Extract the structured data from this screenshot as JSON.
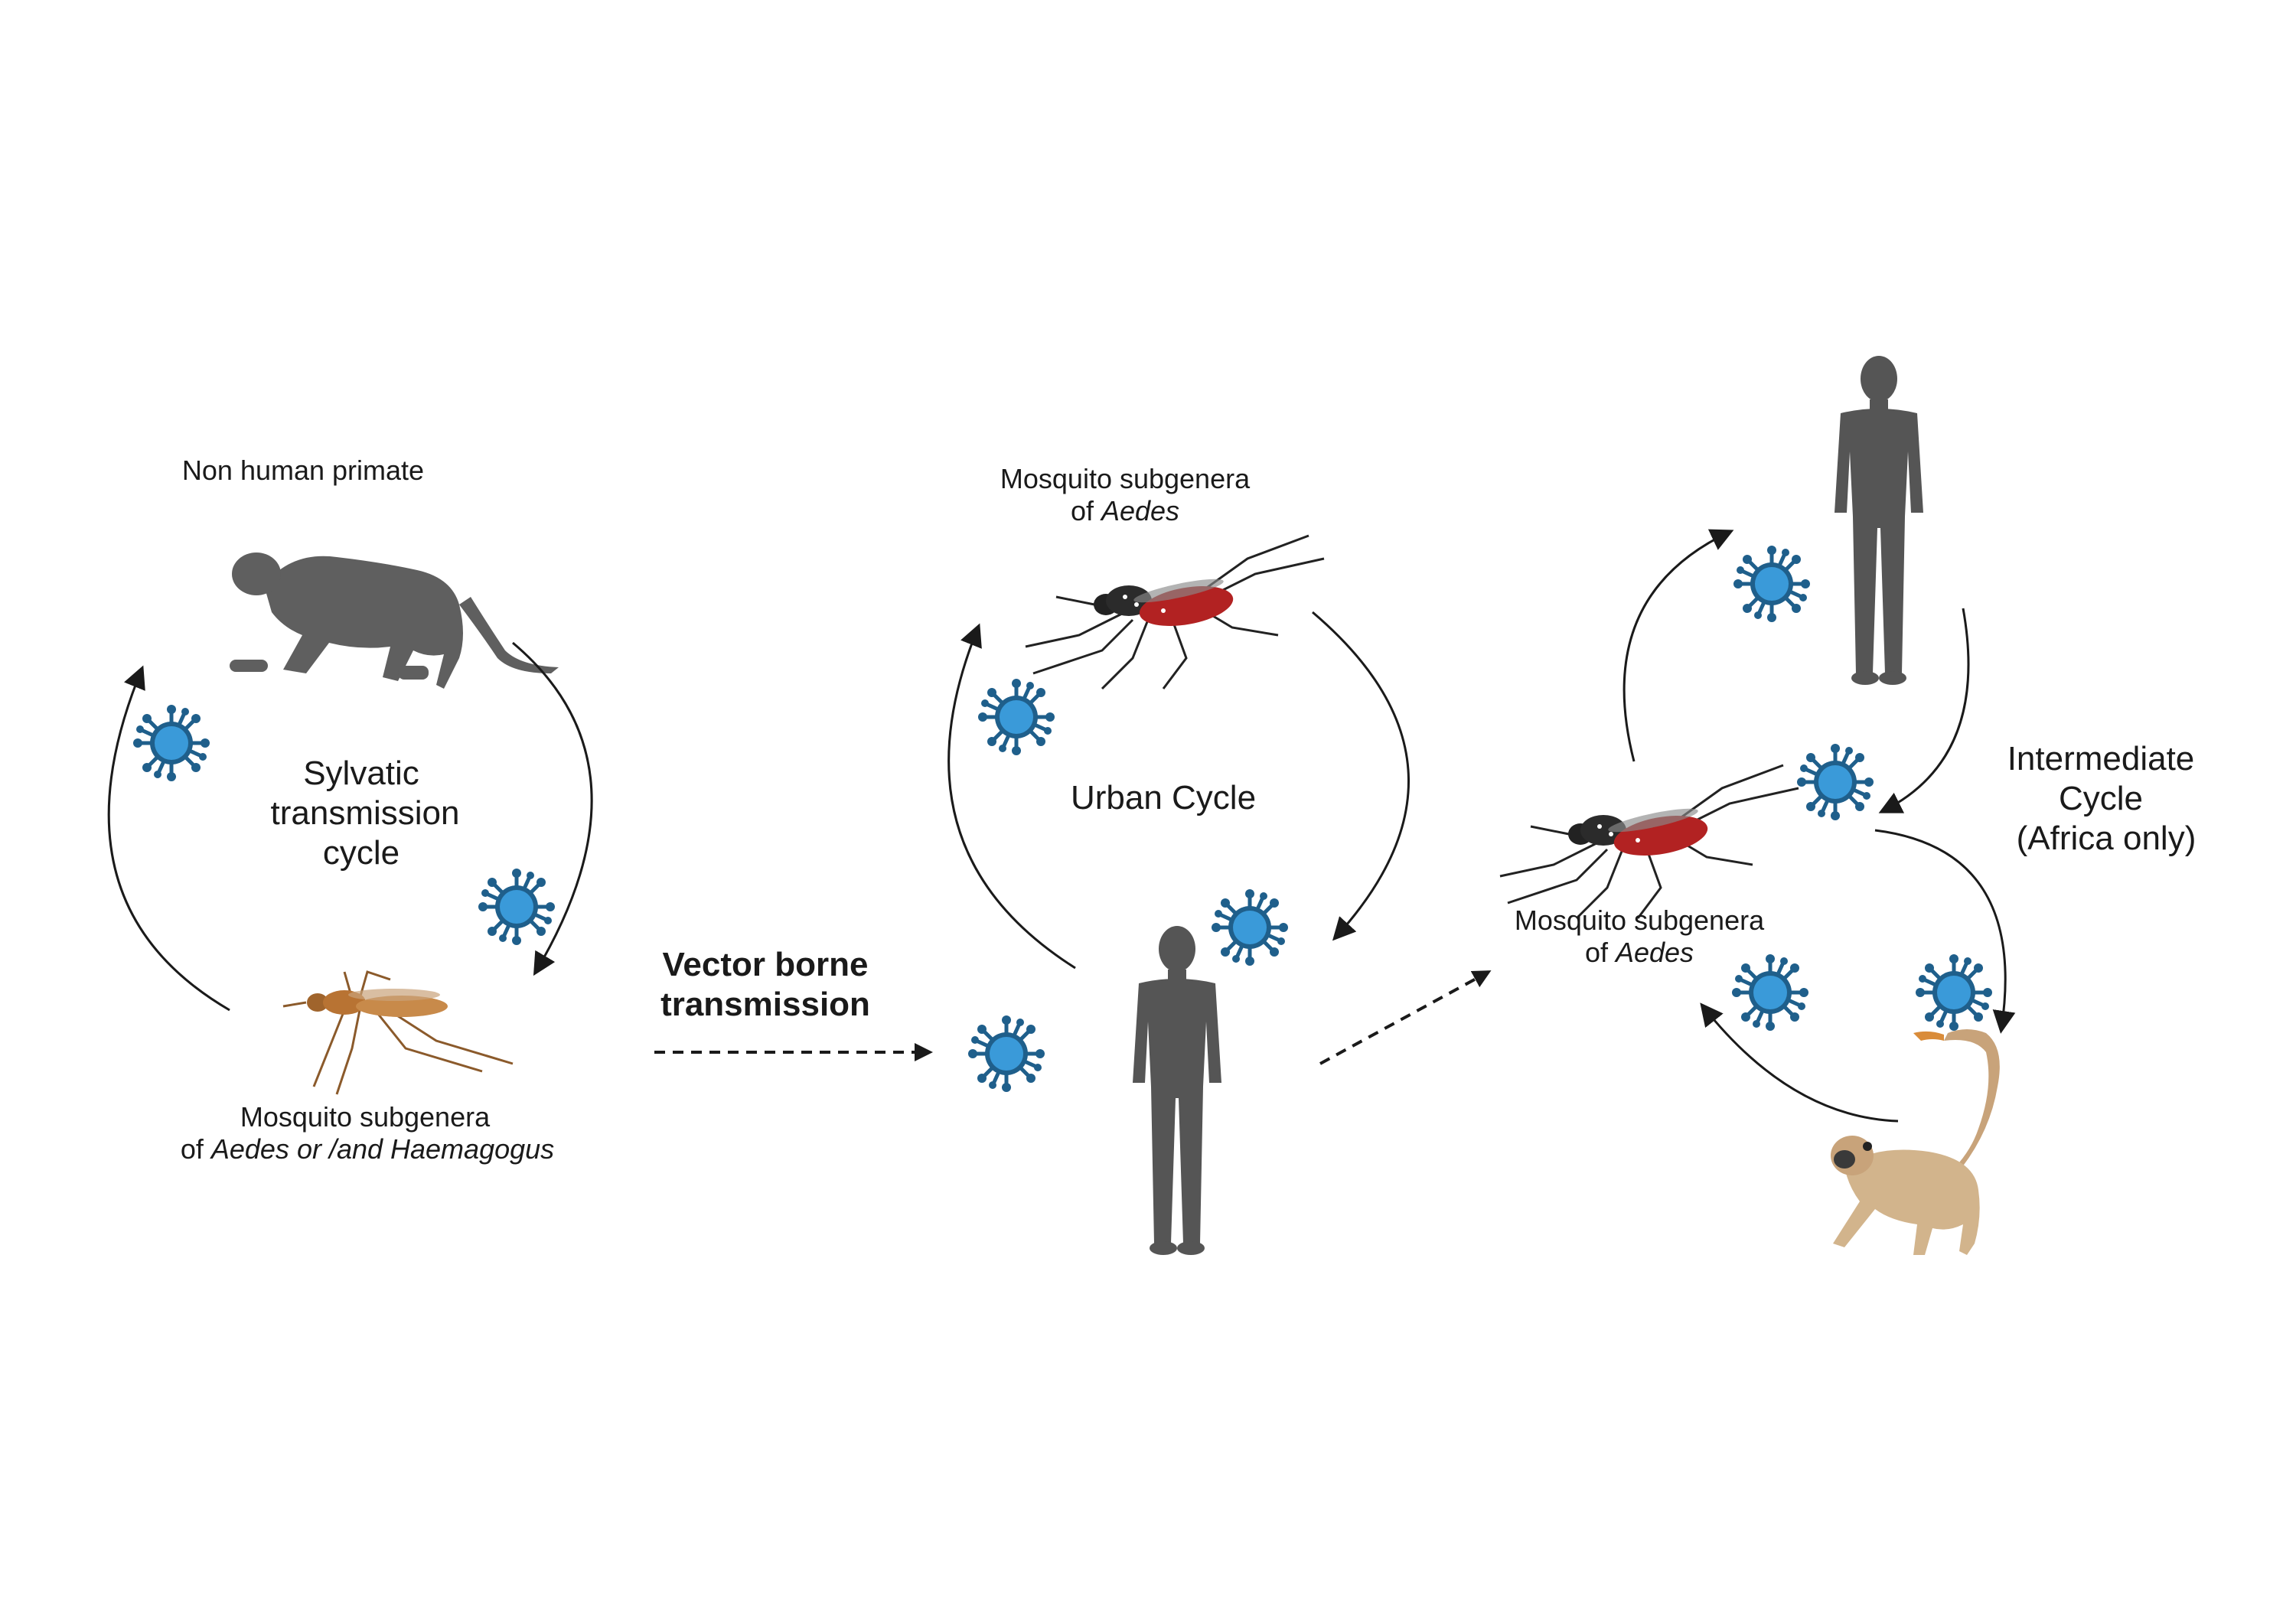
{
  "sylvatic": {
    "primate_label": "Non human primate",
    "cycle_title_l1": "Sylvatic",
    "cycle_title_l2": "transmission",
    "cycle_title_l3": "cycle",
    "mosquito_label_l1": "Mosquito subgenera",
    "mosquito_label_l2_prefix": "of ",
    "mosquito_label_l2_italic": "Aedes or /and Haemagogus"
  },
  "transfer": {
    "title_l1": "Vector borne",
    "title_l2": "transmission"
  },
  "urban": {
    "mosquito_label_l1": "Mosquito subgenera",
    "mosquito_label_l2_prefix": "of ",
    "mosquito_label_l2_italic": "Aedes",
    "cycle_title": "Urban Cycle"
  },
  "intermediate": {
    "cycle_title_l1": "Intermediate",
    "cycle_title_l2": "Cycle",
    "cycle_title_l3": "(Africa only)",
    "mosquito_label_l1": "Mosquito subgenera",
    "mosquito_label_l2_prefix": "of ",
    "mosquito_label_l2_italic": "Aedes"
  },
  "colors": {
    "virus_fill": "#3a9ad9",
    "virus_ring": "#1f5f8b",
    "silhouette": "#555555",
    "arrow": "#1a1a1a",
    "blood": "#b22222"
  }
}
